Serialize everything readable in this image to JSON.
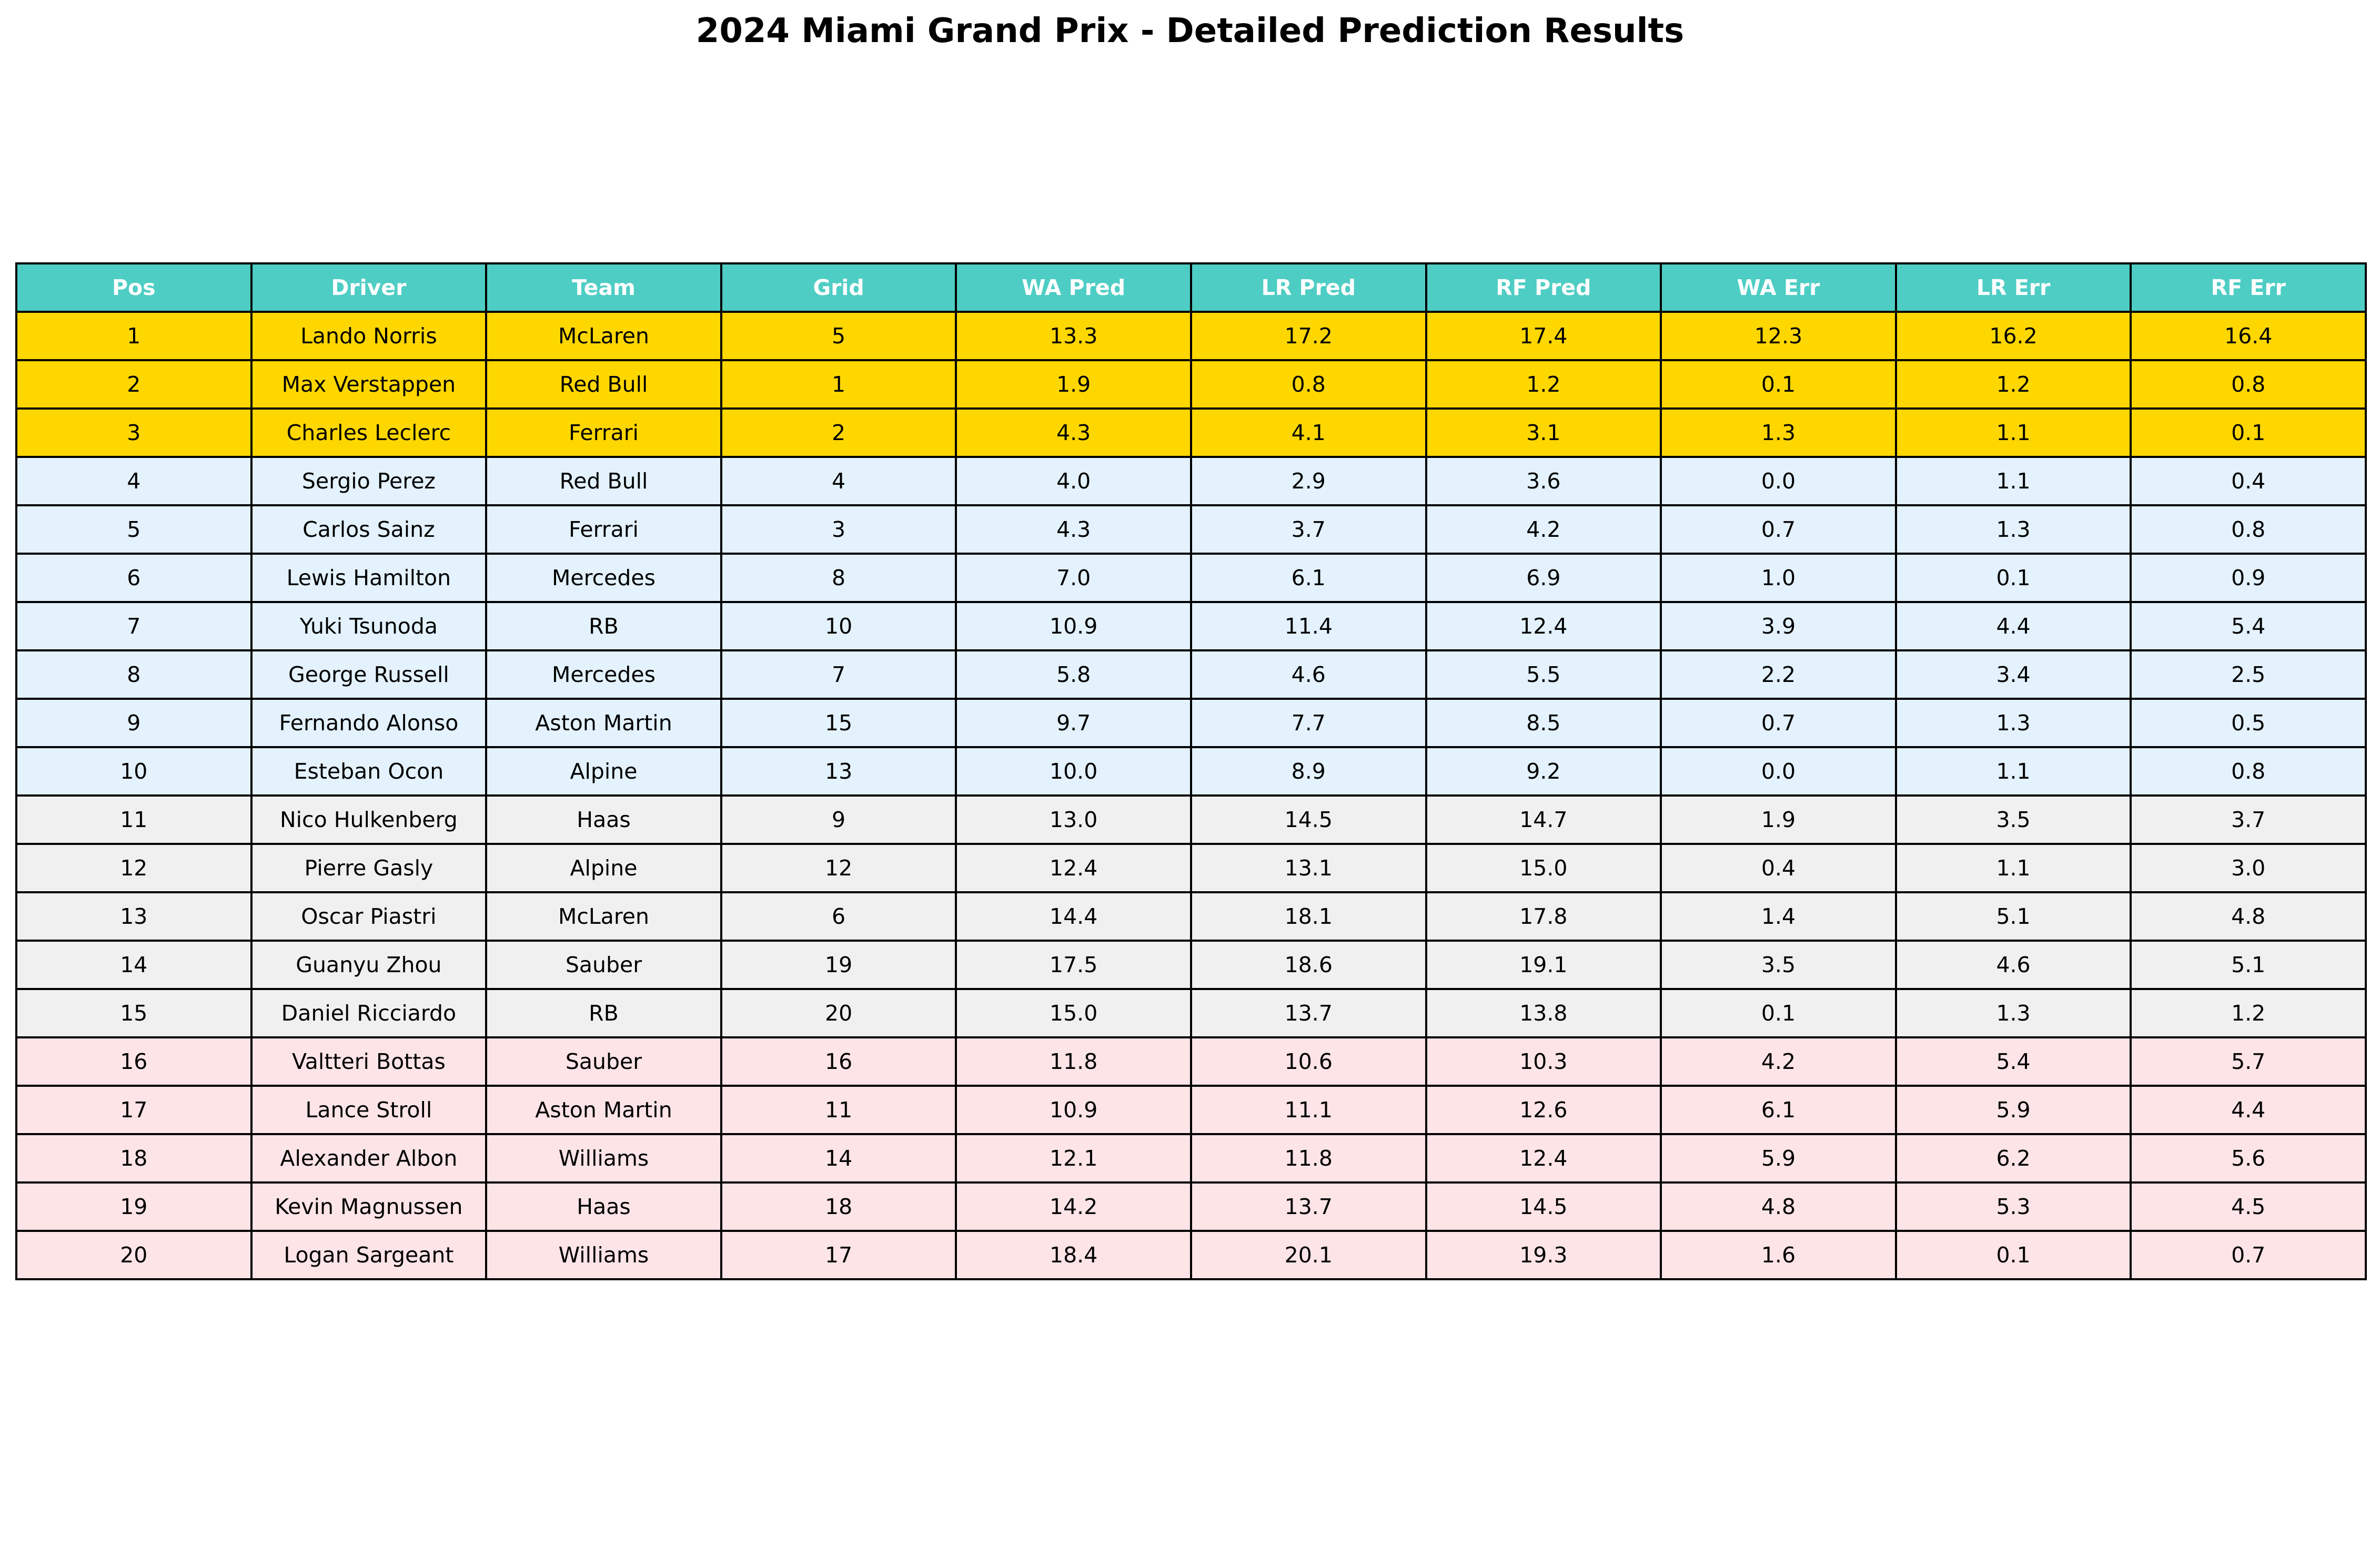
{
  "title": "2024 Miami Grand Prix - Detailed Prediction Results",
  "colors": {
    "header_bg": "#4ECDC4",
    "header_text": "#FFFFFF",
    "podium_bg": "#FFD700",
    "points_bg": "#E3F2FD",
    "midfield_bg": "#F0F0F0",
    "back_bg": "#FDE4E6",
    "border": "#000000"
  },
  "chart_data": {
    "type": "table",
    "title": "2024 Miami Grand Prix - Detailed Prediction Results",
    "columns": [
      "Pos",
      "Driver",
      "Team",
      "Grid",
      "WA Pred",
      "LR Pred",
      "RF Pred",
      "WA Err",
      "LR Err",
      "RF Err"
    ],
    "rows": [
      [
        "1",
        "Lando Norris",
        "McLaren",
        "5",
        "13.3",
        "17.2",
        "17.4",
        "12.3",
        "16.2",
        "16.4"
      ],
      [
        "2",
        "Max Verstappen",
        "Red Bull",
        "1",
        "1.9",
        "0.8",
        "1.2",
        "0.1",
        "1.2",
        "0.8"
      ],
      [
        "3",
        "Charles Leclerc",
        "Ferrari",
        "2",
        "4.3",
        "4.1",
        "3.1",
        "1.3",
        "1.1",
        "0.1"
      ],
      [
        "4",
        "Sergio Perez",
        "Red Bull",
        "4",
        "4.0",
        "2.9",
        "3.6",
        "0.0",
        "1.1",
        "0.4"
      ],
      [
        "5",
        "Carlos Sainz",
        "Ferrari",
        "3",
        "4.3",
        "3.7",
        "4.2",
        "0.7",
        "1.3",
        "0.8"
      ],
      [
        "6",
        "Lewis Hamilton",
        "Mercedes",
        "8",
        "7.0",
        "6.1",
        "6.9",
        "1.0",
        "0.1",
        "0.9"
      ],
      [
        "7",
        "Yuki Tsunoda",
        "RB",
        "10",
        "10.9",
        "11.4",
        "12.4",
        "3.9",
        "4.4",
        "5.4"
      ],
      [
        "8",
        "George Russell",
        "Mercedes",
        "7",
        "5.8",
        "4.6",
        "5.5",
        "2.2",
        "3.4",
        "2.5"
      ],
      [
        "9",
        "Fernando Alonso",
        "Aston Martin",
        "15",
        "9.7",
        "7.7",
        "8.5",
        "0.7",
        "1.3",
        "0.5"
      ],
      [
        "10",
        "Esteban Ocon",
        "Alpine",
        "13",
        "10.0",
        "8.9",
        "9.2",
        "0.0",
        "1.1",
        "0.8"
      ],
      [
        "11",
        "Nico Hulkenberg",
        "Haas",
        "9",
        "13.0",
        "14.5",
        "14.7",
        "1.9",
        "3.5",
        "3.7"
      ],
      [
        "12",
        "Pierre Gasly",
        "Alpine",
        "12",
        "12.4",
        "13.1",
        "15.0",
        "0.4",
        "1.1",
        "3.0"
      ],
      [
        "13",
        "Oscar Piastri",
        "McLaren",
        "6",
        "14.4",
        "18.1",
        "17.8",
        "1.4",
        "5.1",
        "4.8"
      ],
      [
        "14",
        "Guanyu Zhou",
        "Sauber",
        "19",
        "17.5",
        "18.6",
        "19.1",
        "3.5",
        "4.6",
        "5.1"
      ],
      [
        "15",
        "Daniel Ricciardo",
        "RB",
        "20",
        "15.0",
        "13.7",
        "13.8",
        "0.1",
        "1.3",
        "1.2"
      ],
      [
        "16",
        "Valtteri Bottas",
        "Sauber",
        "16",
        "11.8",
        "10.6",
        "10.3",
        "4.2",
        "5.4",
        "5.7"
      ],
      [
        "17",
        "Lance Stroll",
        "Aston Martin",
        "11",
        "10.9",
        "11.1",
        "12.6",
        "6.1",
        "5.9",
        "4.4"
      ],
      [
        "18",
        "Alexander Albon",
        "Williams",
        "14",
        "12.1",
        "11.8",
        "12.4",
        "5.9",
        "6.2",
        "5.6"
      ],
      [
        "19",
        "Kevin Magnussen",
        "Haas",
        "18",
        "14.2",
        "13.7",
        "14.5",
        "4.8",
        "5.3",
        "4.5"
      ],
      [
        "20",
        "Logan Sargeant",
        "Williams",
        "17",
        "18.4",
        "20.1",
        "19.3",
        "1.6",
        "0.1",
        "0.7"
      ]
    ],
    "row_groups": [
      "podium",
      "podium",
      "podium",
      "points",
      "points",
      "points",
      "points",
      "points",
      "points",
      "points",
      "midfield",
      "midfield",
      "midfield",
      "midfield",
      "midfield",
      "back",
      "back",
      "back",
      "back",
      "back"
    ]
  }
}
